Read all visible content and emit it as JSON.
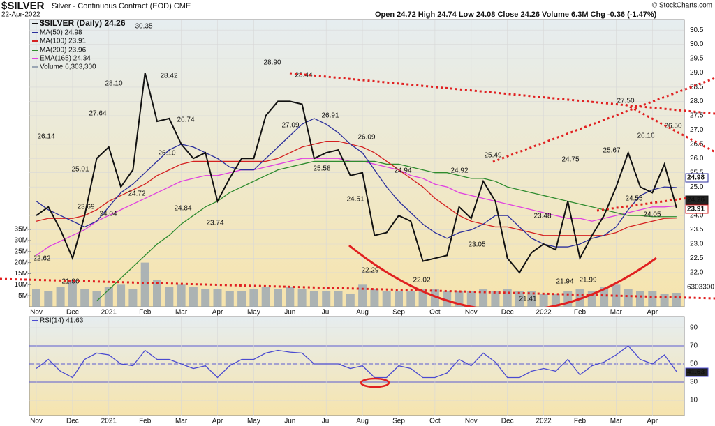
{
  "header": {
    "symbol": "$SILVER",
    "title": "Silver - Continuous Contract (EOD) CME",
    "date": "22-Apr-2022",
    "quote": "Open 24.72 High 24.74 Low 24.08 Close 24.26 Volume 6.3M Chg -0.36 (-1.47%)",
    "credit": "© StockCharts.com"
  },
  "chart_data": [
    {
      "type": "line",
      "categories": [
        "Nov",
        null,
        null,
        "Dec",
        null,
        null,
        "2021",
        null,
        null,
        "Feb",
        null,
        null,
        "Mar",
        null,
        null,
        "Apr",
        null,
        null,
        "May",
        null,
        null,
        "Jun",
        null,
        null,
        "Jul",
        null,
        null,
        "Aug",
        null,
        null,
        "Sep",
        null,
        null,
        "Oct",
        null,
        null,
        "Nov",
        null,
        null,
        "Dec",
        null,
        null,
        "2022",
        null,
        null,
        "Feb",
        null,
        null,
        "Mar",
        null,
        null,
        "Apr",
        null,
        null
      ],
      "series": [
        {
          "name": "$SILVER (Daily) 24.26",
          "color": "#111111",
          "values": [
            24.0,
            24.3,
            23.5,
            22.5,
            24.0,
            26.0,
            26.4,
            25.0,
            25.6,
            29.0,
            27.3,
            27.4,
            26.5,
            26.0,
            26.2,
            24.5,
            25.3,
            26.0,
            26.0,
            27.5,
            28.0,
            28.0,
            27.9,
            26.0,
            26.2,
            26.3,
            25.4,
            25.5,
            23.3,
            23.4,
            24.0,
            23.8,
            22.4,
            22.5,
            22.6,
            24.3,
            23.9,
            25.2,
            24.5,
            22.5,
            22.0,
            22.7,
            23.0,
            22.8,
            24.5,
            22.5,
            23.3,
            24.0,
            25.0,
            26.2,
            25.0,
            24.8,
            25.8,
            24.26
          ]
        },
        {
          "name": "MA(50) 24.98",
          "color": "#2b2f9c",
          "values": [
            24.5,
            24.2,
            24.0,
            23.8,
            23.6,
            23.8,
            24.3,
            24.8,
            25.1,
            25.5,
            25.9,
            26.3,
            26.5,
            26.4,
            26.2,
            26.0,
            25.7,
            25.6,
            25.6,
            26.0,
            26.4,
            26.8,
            27.2,
            27.4,
            27.2,
            26.9,
            26.5,
            26.2,
            25.6,
            25.0,
            24.5,
            24.1,
            23.7,
            23.4,
            23.2,
            23.4,
            23.5,
            23.7,
            24.0,
            24.0,
            23.6,
            23.2,
            23.0,
            22.9,
            22.9,
            23.0,
            23.2,
            23.3,
            23.6,
            24.2,
            24.7,
            24.9,
            25.0,
            24.98
          ]
        },
        {
          "name": "MA(100) 23.91",
          "color": "#d42020",
          "values": [
            23.8,
            23.9,
            23.9,
            23.9,
            24.0,
            24.2,
            24.5,
            24.7,
            24.9,
            25.1,
            25.4,
            25.6,
            25.8,
            25.9,
            25.9,
            25.9,
            25.9,
            25.9,
            25.9,
            25.9,
            26.0,
            26.2,
            26.4,
            26.5,
            26.6,
            26.6,
            26.5,
            26.4,
            26.2,
            25.9,
            25.6,
            25.3,
            25.0,
            24.6,
            24.3,
            24.0,
            23.8,
            23.7,
            23.6,
            23.6,
            23.5,
            23.4,
            23.3,
            23.3,
            23.3,
            23.3,
            23.3,
            23.3,
            23.4,
            23.6,
            23.7,
            23.8,
            23.9,
            23.91
          ]
        },
        {
          "name": "MA(200) 23.96",
          "color": "#2e8b2e",
          "values": [
            null,
            null,
            null,
            null,
            null,
            21.0,
            21.4,
            21.8,
            22.2,
            22.6,
            23.0,
            23.3,
            23.7,
            24.0,
            24.3,
            24.5,
            24.8,
            25.0,
            25.2,
            25.4,
            25.6,
            25.7,
            25.8,
            25.9,
            25.9,
            25.9,
            25.9,
            25.9,
            25.9,
            25.8,
            25.8,
            25.7,
            25.6,
            25.5,
            25.5,
            25.4,
            25.3,
            25.3,
            25.2,
            25.0,
            24.9,
            24.8,
            24.7,
            24.6,
            24.5,
            24.4,
            24.3,
            24.2,
            24.1,
            24.0,
            24.0,
            23.96,
            23.96,
            23.96
          ]
        },
        {
          "name": "EMA(165) 24.34",
          "color": "#e040e0",
          "values": [
            22.6,
            22.9,
            23.1,
            23.3,
            23.5,
            23.8,
            24.0,
            24.2,
            24.4,
            24.6,
            24.8,
            25.0,
            25.2,
            25.3,
            25.4,
            25.4,
            25.5,
            25.6,
            25.6,
            25.7,
            25.8,
            25.9,
            26.0,
            26.0,
            26.0,
            26.0,
            25.9,
            25.9,
            25.8,
            25.7,
            25.6,
            25.4,
            25.3,
            25.1,
            25.0,
            24.8,
            24.7,
            24.6,
            24.5,
            24.4,
            24.3,
            24.2,
            24.1,
            24.0,
            23.9,
            23.9,
            23.8,
            23.9,
            24.0,
            24.1,
            24.2,
            24.3,
            24.3,
            24.34
          ]
        },
        {
          "name": "Volume 6,303,300",
          "color": "#9aa6b4",
          "type": "bar",
          "axis": "y2",
          "values": [
            8000000,
            7000000,
            9000000,
            12000000,
            8000000,
            7000000,
            9000000,
            10000000,
            8000000,
            20000000,
            12000000,
            9000000,
            10000000,
            9000000,
            8000000,
            8000000,
            7000000,
            7000000,
            8000000,
            9000000,
            8000000,
            9000000,
            8000000,
            7000000,
            7000000,
            7000000,
            6000000,
            10000000,
            8000000,
            7000000,
            7000000,
            7000000,
            8000000,
            8000000,
            7000000,
            7000000,
            7000000,
            8000000,
            7000000,
            8000000,
            7000000,
            7000000,
            6000000,
            6000000,
            7000000,
            8000000,
            7000000,
            9000000,
            10000000,
            8000000,
            7000000,
            7000000,
            6000000,
            6303300
          ]
        }
      ],
      "annotations": [
        22.62,
        26.14,
        25.01,
        27.64,
        23.69,
        21.96,
        {
          "value": 28.1,
          "label": "28.10"
        },
        24.04,
        24.72,
        30.35,
        28.42,
        {
          "value": 26.1,
          "label": "26.10"
        },
        26.74,
        24.84,
        23.74,
        {
          "value": 28.9,
          "label": "28.90"
        },
        28.44,
        27.09,
        26.91,
        25.58,
        26.09,
        24.51,
        22.29,
        24.94,
        22.02,
        24.92,
        23.05,
        25.49,
        21.41,
        23.48,
        24.75,
        21.94,
        21.99,
        25.67,
        {
          "value": 27.5,
          "label": "27.50"
        },
        26.16,
        {
          "value": 26.5,
          "label": "26.50"
        },
        24.55,
        24.05
      ],
      "ylim": [
        20.8,
        30.87
      ],
      "yticks": [
        {
          "value": 22,
          "label": "22.0"
        },
        22.5,
        {
          "value": 23,
          "label": "23.0"
        },
        23.5,
        {
          "value": 24,
          "label": "24.0"
        },
        24.5,
        {
          "value": 25,
          "label": "25.0"
        },
        25.5,
        {
          "value": 26,
          "label": "26.0"
        },
        26.5,
        {
          "value": 27,
          "label": "27.0"
        },
        27.5,
        {
          "value": 28,
          "label": "28.0"
        },
        28.5,
        {
          "value": 29,
          "label": "29.0"
        },
        29.5,
        {
          "value": 30,
          "label": "30.0"
        },
        30.5
      ],
      "y2lim": [
        0,
        130000000
      ],
      "y2ticks": [
        {
          "value": 5000000,
          "label": "5M"
        },
        {
          "value": 10000000,
          "label": "10M"
        },
        {
          "value": 15000000,
          "label": "15M"
        },
        {
          "value": 20000000,
          "label": "20M"
        },
        {
          "value": 25000000,
          "label": "25M"
        },
        {
          "value": 30000000,
          "label": "30M"
        },
        {
          "value": 35000000,
          "label": "35M"
        }
      ],
      "grid": true
    },
    {
      "type": "line",
      "categories": [
        "Nov",
        null,
        null,
        "Dec",
        null,
        null,
        "2021",
        null,
        null,
        "Feb",
        null,
        null,
        "Mar",
        null,
        null,
        "Apr",
        null,
        null,
        "May",
        null,
        null,
        "Jun",
        null,
        null,
        "Jul",
        null,
        null,
        "Aug",
        null,
        null,
        "Sep",
        null,
        null,
        "Oct",
        null,
        null,
        "Nov",
        null,
        null,
        "Dec",
        null,
        null,
        "2022",
        null,
        null,
        "Feb",
        null,
        null,
        "Mar",
        null,
        null,
        "Apr",
        null,
        null
      ],
      "series": [
        {
          "name": "RSI(14) 41.63",
          "color": "#4a4ad0",
          "values": [
            45,
            55,
            42,
            35,
            55,
            62,
            60,
            50,
            48,
            65,
            55,
            55,
            50,
            45,
            48,
            35,
            48,
            55,
            55,
            62,
            65,
            63,
            62,
            50,
            50,
            50,
            45,
            48,
            35,
            35,
            48,
            45,
            35,
            35,
            40,
            55,
            48,
            62,
            52,
            35,
            35,
            42,
            45,
            42,
            55,
            38,
            48,
            52,
            60,
            70,
            55,
            50,
            60,
            41.63
          ]
        }
      ],
      "levels": [
        30,
        50,
        70
      ],
      "ylim": [
        -6.9,
        102.3
      ],
      "yticks": [
        10,
        30,
        50,
        70,
        90
      ],
      "grid": true
    }
  ]
}
